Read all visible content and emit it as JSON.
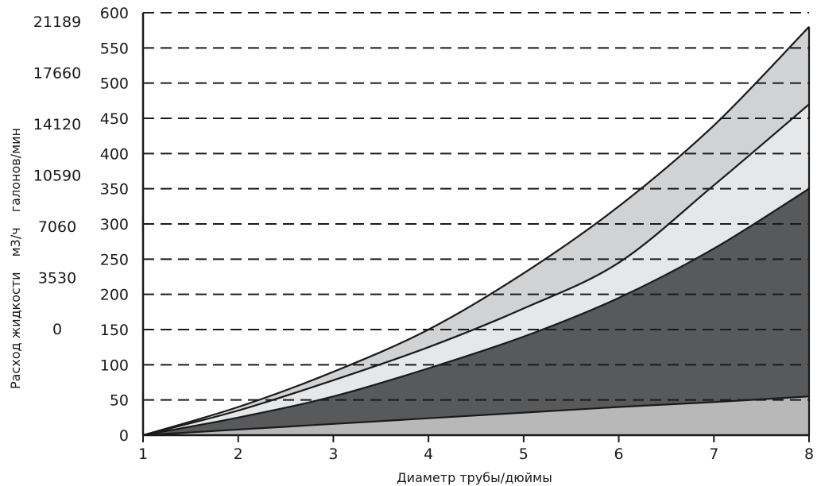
{
  "chart_data": {
    "type": "area",
    "title": "",
    "xlabel": "Диаметр трубы/дюймы",
    "ylabel": "Расход жидкости",
    "ylabel_units_m3": "м3/ч",
    "ylabel_units_gal": "галонов/мин",
    "x": [
      1,
      2,
      3,
      4,
      5,
      6,
      7,
      8
    ],
    "xlim": [
      1,
      8
    ],
    "ylim": [
      0,
      600
    ],
    "yticks_m3": [
      "0",
      "50",
      "100",
      "150",
      "200",
      "250",
      "300",
      "350",
      "400",
      "450",
      "500",
      "550",
      "600"
    ],
    "yticks_gal": [
      "0",
      "3530",
      "7060",
      "10590",
      "14120",
      "17660",
      "21189"
    ],
    "grid": "dashed horizontal",
    "legend": "none",
    "band_colors": [
      "#b8b8b8",
      "#58595b",
      "#e6e7e8",
      "#d1d2d4"
    ],
    "series": [
      {
        "values": [
          0,
          8,
          16,
          24,
          32,
          40,
          47,
          55
        ]
      },
      {
        "values": [
          0,
          25,
          55,
          95,
          140,
          195,
          265,
          350
        ]
      },
      {
        "values": [
          0,
          35,
          78,
          125,
          180,
          245,
          355,
          470
        ]
      },
      {
        "values": [
          0,
          40,
          90,
          150,
          230,
          325,
          440,
          580
        ]
      }
    ]
  }
}
